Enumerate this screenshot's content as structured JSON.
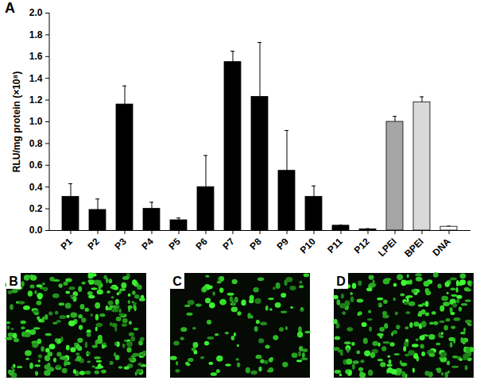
{
  "chart_data": {
    "type": "bar",
    "panel_label": "A",
    "y_label": "RLU/mg protein (×10⁸)",
    "categories": [
      "P1",
      "P2",
      "P3",
      "P4",
      "P5",
      "P6",
      "P7",
      "P8",
      "P9",
      "P10",
      "P11",
      "P12",
      "LPEI",
      "BPEI",
      "DNA"
    ],
    "values": [
      0.31,
      0.19,
      1.16,
      0.2,
      0.095,
      0.4,
      1.55,
      1.23,
      0.55,
      0.31,
      0.045,
      0.012,
      1.0,
      1.18,
      0.035
    ],
    "errors": [
      0.12,
      0.1,
      0.17,
      0.06,
      0.02,
      0.29,
      0.1,
      0.5,
      0.37,
      0.1,
      0.005,
      0.005,
      0.05,
      0.05,
      0.005
    ],
    "colors": [
      "#000000",
      "#000000",
      "#000000",
      "#000000",
      "#000000",
      "#000000",
      "#000000",
      "#000000",
      "#000000",
      "#000000",
      "#000000",
      "#000000",
      "#a6a6a6",
      "#d9d9d9",
      "#ffffff"
    ],
    "ylim": [
      0,
      2
    ],
    "yticks": [
      0,
      0.2,
      0.4,
      0.6,
      0.8,
      1,
      1.2,
      1.4,
      1.6,
      1.8,
      2
    ],
    "grid": false
  },
  "image_panels": [
    "B",
    "C",
    "D"
  ]
}
